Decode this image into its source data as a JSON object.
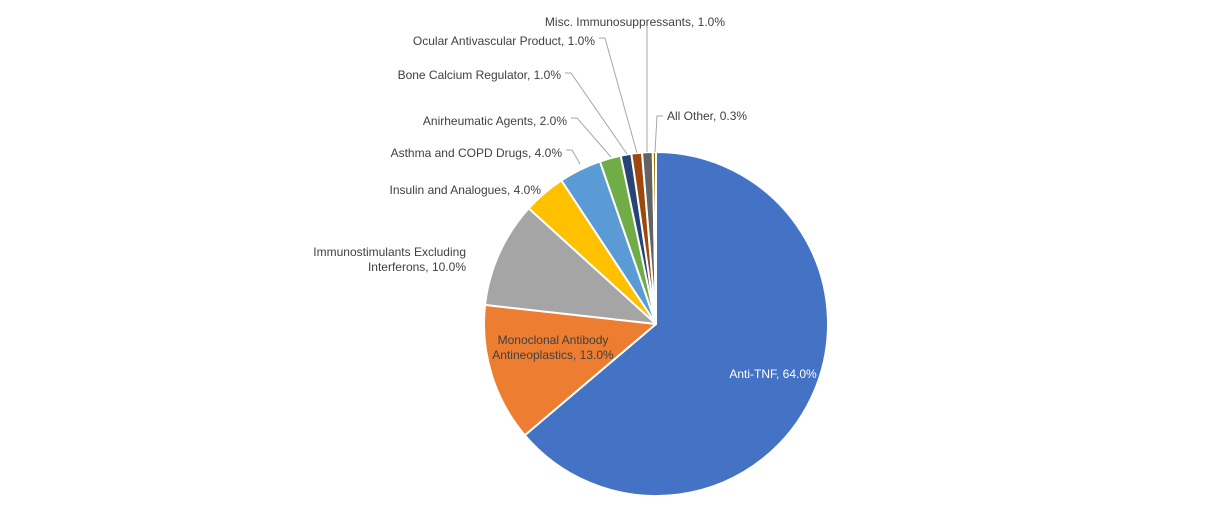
{
  "chart_data": {
    "type": "pie",
    "title": "",
    "start_angle_deg": 0,
    "direction": "clockwise",
    "slices": [
      {
        "label": "Anti-TNF, 64.0%",
        "name": "Anti-TNF",
        "value": 64.0,
        "color": "#4472C4",
        "label_color": "#ffffff"
      },
      {
        "label": "Monoclonal Antibody Antineoplastics, 13.0%",
        "name": "Monoclonal Antibody Antineoplastics",
        "value": 13.0,
        "color": "#ED7D31",
        "label_color": "#404040"
      },
      {
        "label": "Immunostimulants Excluding Interferons, 10.0%",
        "name": "Immunostimulants Excluding Interferons",
        "value": 10.0,
        "color": "#A5A5A5",
        "label_color": "#404040"
      },
      {
        "label": "Insulin and Analogues, 4.0%",
        "name": "Insulin and Analogues",
        "value": 4.0,
        "color": "#FFC000",
        "label_color": "#404040"
      },
      {
        "label": "Asthma and COPD Drugs, 4.0%",
        "name": "Asthma and COPD Drugs",
        "value": 4.0,
        "color": "#5B9BD5",
        "label_color": "#404040"
      },
      {
        "label": "Anirheumatic Agents, 2.0%",
        "name": "Anirheumatic Agents",
        "value": 2.0,
        "color": "#70AD47",
        "label_color": "#404040"
      },
      {
        "label": "Bone Calcium Regulator, 1.0%",
        "name": "Bone Calcium Regulator",
        "value": 1.0,
        "color": "#264478",
        "label_color": "#404040"
      },
      {
        "label": "Ocular Antivascular Product, 1.0%",
        "name": "Ocular Antivascular Product",
        "value": 1.0,
        "color": "#9E480E",
        "label_color": "#404040"
      },
      {
        "label": "Misc. Immunosuppressants, 1.0%",
        "name": "Misc. Immunosuppressants",
        "value": 1.0,
        "color": "#636363",
        "label_color": "#404040"
      },
      {
        "label": "All Other, 0.3%",
        "name": "All Other",
        "value": 0.3,
        "color": "#997300",
        "label_color": "#404040"
      }
    ]
  }
}
